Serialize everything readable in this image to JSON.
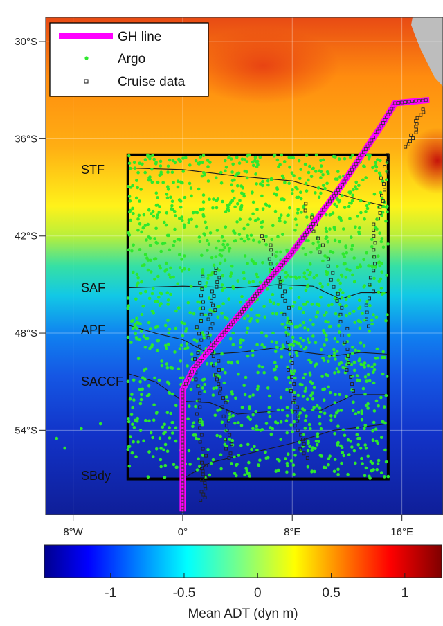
{
  "map": {
    "lat_ticks": [
      {
        "lat": 30,
        "label": "30°S"
      },
      {
        "lat": 36,
        "label": "36°S"
      },
      {
        "lat": 42,
        "label": "42°S"
      },
      {
        "lat": 48,
        "label": "48°S"
      },
      {
        "lat": 54,
        "label": "54°S"
      }
    ],
    "lon_ticks": [
      {
        "lon": -8,
        "label": "8°W"
      },
      {
        "lon": 0,
        "label": "0°"
      },
      {
        "lon": 8,
        "label": "8°E"
      },
      {
        "lon": 16,
        "label": "16°E"
      }
    ],
    "extent": {
      "lon_min": -10,
      "lon_max": 19,
      "lat_min": 28.5,
      "lat_max": 59.2
    },
    "study_box": {
      "lon_min": -4,
      "lon_max": 15,
      "lat_min": 37,
      "lat_max": 57
    },
    "gh_line": [
      [
        0,
        59
      ],
      [
        0,
        51.5
      ],
      [
        0.8,
        50.2
      ],
      [
        4,
        47
      ],
      [
        8,
        43
      ],
      [
        11.5,
        39
      ],
      [
        14.5,
        35.2
      ],
      [
        15.5,
        33.8
      ],
      [
        18,
        33.6
      ]
    ],
    "fronts": [
      {
        "label": "STF",
        "label_lat": 37.9,
        "points": [
          [
            -4,
            37.8
          ],
          [
            0,
            37.9
          ],
          [
            4,
            38.3
          ],
          [
            8,
            38.6
          ],
          [
            11,
            39.3
          ],
          [
            13,
            39.8
          ],
          [
            15,
            40.2
          ]
        ]
      },
      {
        "label": "SAF",
        "label_lat": 45.2,
        "points": [
          [
            -4,
            45.2
          ],
          [
            0,
            45.1
          ],
          [
            4,
            45.2
          ],
          [
            7,
            45.0
          ],
          [
            9.5,
            45.1
          ],
          [
            11.5,
            45.9
          ],
          [
            13,
            45.5
          ],
          [
            15,
            45.5
          ]
        ]
      },
      {
        "label": "APF",
        "label_lat": 47.8,
        "points": [
          [
            -4,
            47.5
          ],
          [
            -2,
            48.0
          ],
          [
            0,
            48.4
          ],
          [
            2,
            49.3
          ],
          [
            4,
            49.2
          ],
          [
            7,
            48.9
          ],
          [
            9,
            49.2
          ],
          [
            11,
            49.4
          ],
          [
            13,
            49.2
          ],
          [
            15,
            49.3
          ]
        ]
      },
      {
        "label": "SACCF",
        "label_lat": 51.0,
        "points": [
          [
            -4,
            50.5
          ],
          [
            -2,
            51.0
          ],
          [
            0,
            52.2
          ],
          [
            2,
            52.3
          ],
          [
            4,
            53.0
          ],
          [
            7,
            52.8
          ],
          [
            10,
            52.8
          ],
          [
            12.5,
            51.8
          ],
          [
            15,
            51.8
          ]
        ]
      },
      {
        "label": "SBdy",
        "label_lat": 56.8,
        "points": [
          [
            0,
            57.0
          ],
          [
            2,
            56.0
          ],
          [
            5,
            55.4
          ],
          [
            8,
            54.8
          ],
          [
            11,
            54.0
          ],
          [
            13,
            53.8
          ],
          [
            15,
            53.6
          ]
        ]
      }
    ],
    "colors": {
      "gh_line": "#ff00ff",
      "argo": "#2ee82e",
      "cruise": "#222222",
      "land": "#bdbdbd"
    }
  },
  "legend": {
    "items": [
      {
        "key": "gh",
        "label": "GH line"
      },
      {
        "key": "argo",
        "label": "Argo"
      },
      {
        "key": "cruise",
        "label": "Cruise data"
      }
    ]
  },
  "colorbar": {
    "range": [
      -1.45,
      1.25
    ],
    "ticks": [
      {
        "value": -1,
        "label": "-1"
      },
      {
        "value": -0.5,
        "label": "-0.5"
      },
      {
        "value": 0,
        "label": "0"
      },
      {
        "value": 0.5,
        "label": "0.5"
      },
      {
        "value": 1,
        "label": "1"
      }
    ],
    "title": "Mean ADT (dyn m)",
    "colormap": "jet"
  }
}
